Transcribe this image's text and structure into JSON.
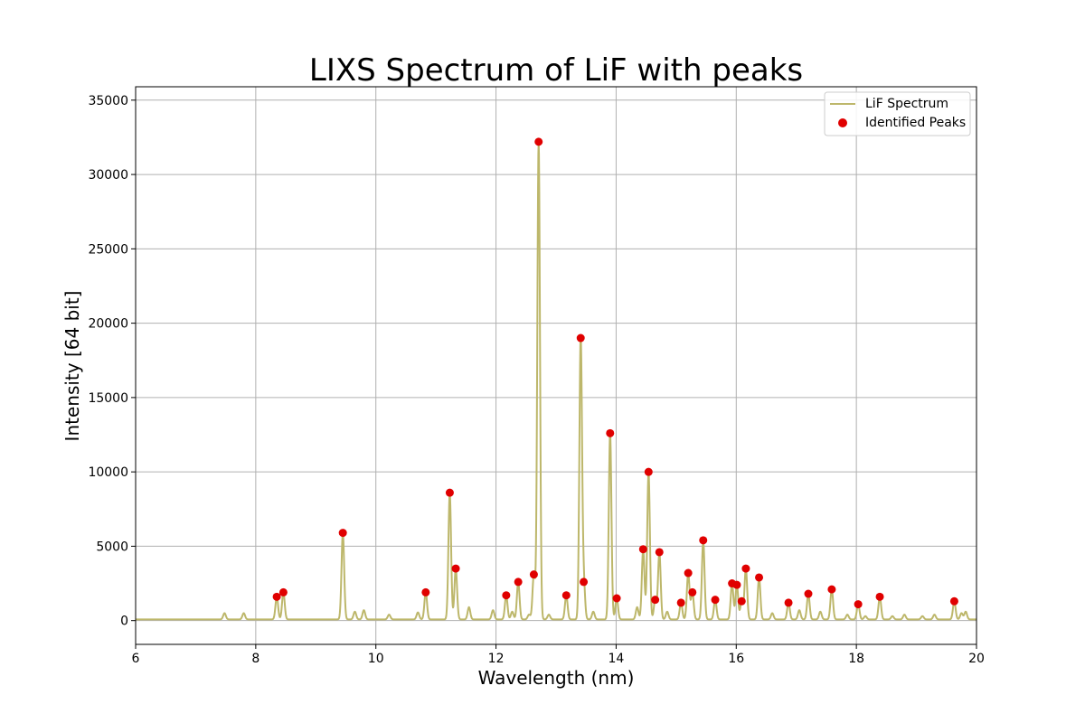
{
  "chart_data": {
    "type": "line",
    "title": "LIXS Spectrum of LiF with peaks",
    "xlabel": "Wavelength (nm)",
    "ylabel": "Intensity [64 bit]",
    "xlim": [
      6,
      20
    ],
    "ylim": [
      -1600,
      35900
    ],
    "xticks": [
      6,
      8,
      10,
      12,
      14,
      16,
      18,
      20
    ],
    "yticks": [
      0,
      5000,
      10000,
      15000,
      20000,
      25000,
      30000,
      35000
    ],
    "grid": true,
    "legend_position": "top-right",
    "colors": {
      "line": "#bdb76b",
      "peaks": "#e00000",
      "grid": "#b0b0b0"
    },
    "series": [
      {
        "name": "LiF Spectrum",
        "kind": "line",
        "baseline": 80,
        "peaks": [
          [
            7.48,
            500
          ],
          [
            7.8,
            500
          ],
          [
            8.35,
            1600
          ],
          [
            8.46,
            1900
          ],
          [
            9.45,
            5900
          ],
          [
            9.65,
            600
          ],
          [
            9.8,
            700
          ],
          [
            10.22,
            400
          ],
          [
            10.7,
            550
          ],
          [
            10.83,
            1900
          ],
          [
            11.23,
            8600
          ],
          [
            11.33,
            3500
          ],
          [
            11.55,
            900
          ],
          [
            11.95,
            700
          ],
          [
            12.17,
            1700
          ],
          [
            12.27,
            600
          ],
          [
            12.37,
            2600
          ],
          [
            12.55,
            400
          ],
          [
            12.63,
            3100
          ],
          [
            12.71,
            32200
          ],
          [
            12.88,
            400
          ],
          [
            13.17,
            1700
          ],
          [
            13.41,
            19000
          ],
          [
            13.46,
            2600
          ],
          [
            13.62,
            600
          ],
          [
            13.9,
            12600
          ],
          [
            14.01,
            1500
          ],
          [
            14.35,
            900
          ],
          [
            14.45,
            4800
          ],
          [
            14.54,
            10000
          ],
          [
            14.65,
            1400
          ],
          [
            14.72,
            4600
          ],
          [
            14.85,
            600
          ],
          [
            15.08,
            1200
          ],
          [
            15.2,
            3200
          ],
          [
            15.27,
            1900
          ],
          [
            15.45,
            5400
          ],
          [
            15.65,
            1400
          ],
          [
            15.93,
            2500
          ],
          [
            16.01,
            2400
          ],
          [
            16.09,
            1300
          ],
          [
            16.16,
            3500
          ],
          [
            16.38,
            2900
          ],
          [
            16.6,
            500
          ],
          [
            16.87,
            1200
          ],
          [
            17.05,
            700
          ],
          [
            17.2,
            1800
          ],
          [
            17.4,
            600
          ],
          [
            17.59,
            2100
          ],
          [
            17.85,
            400
          ],
          [
            18.03,
            1100
          ],
          [
            18.15,
            300
          ],
          [
            18.39,
            1600
          ],
          [
            18.6,
            300
          ],
          [
            18.8,
            400
          ],
          [
            19.1,
            300
          ],
          [
            19.3,
            400
          ],
          [
            19.63,
            1300
          ],
          [
            19.75,
            500
          ],
          [
            19.82,
            600
          ]
        ]
      },
      {
        "name": "Identified Peaks",
        "kind": "scatter",
        "points": [
          [
            8.35,
            1600
          ],
          [
            8.46,
            1900
          ],
          [
            9.45,
            5900
          ],
          [
            10.83,
            1900
          ],
          [
            11.23,
            8600
          ],
          [
            11.33,
            3500
          ],
          [
            12.17,
            1700
          ],
          [
            12.37,
            2600
          ],
          [
            12.63,
            3100
          ],
          [
            12.71,
            32200
          ],
          [
            13.17,
            1700
          ],
          [
            13.41,
            19000
          ],
          [
            13.46,
            2600
          ],
          [
            13.9,
            12600
          ],
          [
            14.01,
            1500
          ],
          [
            14.45,
            4800
          ],
          [
            14.54,
            10000
          ],
          [
            14.65,
            1400
          ],
          [
            14.72,
            4600
          ],
          [
            15.08,
            1200
          ],
          [
            15.2,
            3200
          ],
          [
            15.27,
            1900
          ],
          [
            15.45,
            5400
          ],
          [
            15.65,
            1400
          ],
          [
            15.93,
            2500
          ],
          [
            16.01,
            2400
          ],
          [
            16.09,
            1300
          ],
          [
            16.16,
            3500
          ],
          [
            16.38,
            2900
          ],
          [
            16.87,
            1200
          ],
          [
            17.2,
            1800
          ],
          [
            17.59,
            2100
          ],
          [
            18.03,
            1100
          ],
          [
            18.39,
            1600
          ],
          [
            19.63,
            1300
          ]
        ]
      }
    ]
  }
}
